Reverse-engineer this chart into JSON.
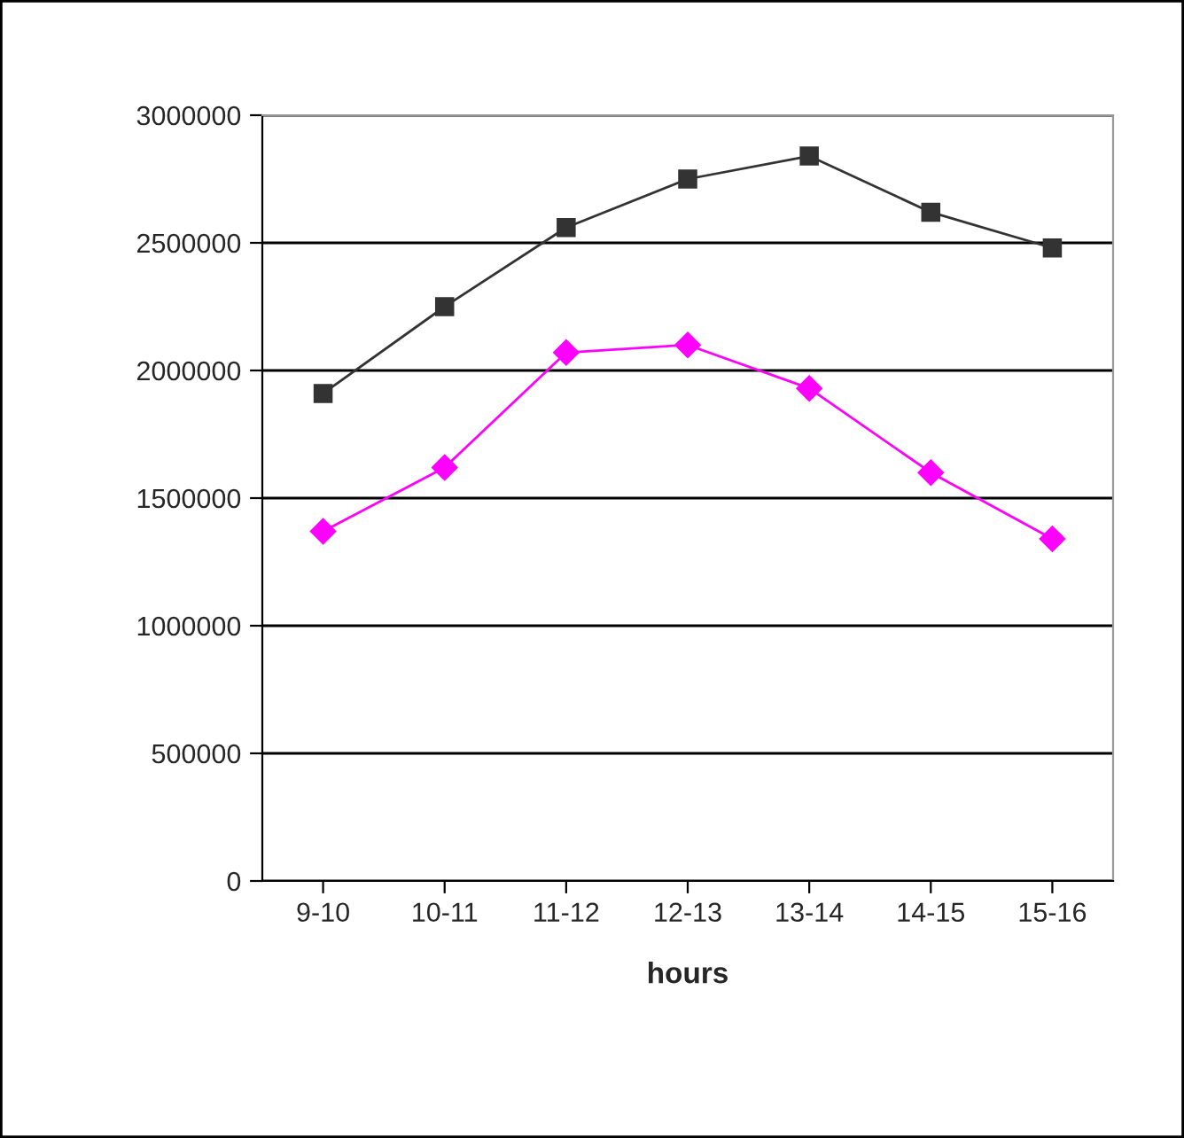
{
  "chart_data": {
    "type": "line",
    "xlabel": "hours",
    "categories": [
      "9-10",
      "10-11",
      "11-12",
      "12-13",
      "13-14",
      "14-15",
      "15-16"
    ],
    "series": [
      {
        "color": "#333333",
        "marker": "square",
        "values": [
          1910000,
          2250000,
          2560000,
          2750000,
          2840000,
          2620000,
          2480000
        ]
      },
      {
        "color": "#ff00ff",
        "marker": "diamond",
        "values": [
          1370000,
          1620000,
          2070000,
          2100000,
          1930000,
          1600000,
          1340000
        ]
      }
    ],
    "ylim": [
      0,
      3000000
    ],
    "yticks": [
      0,
      500000,
      1000000,
      1500000,
      2000000,
      2500000,
      3000000
    ],
    "grid": "y",
    "legend": false
  }
}
